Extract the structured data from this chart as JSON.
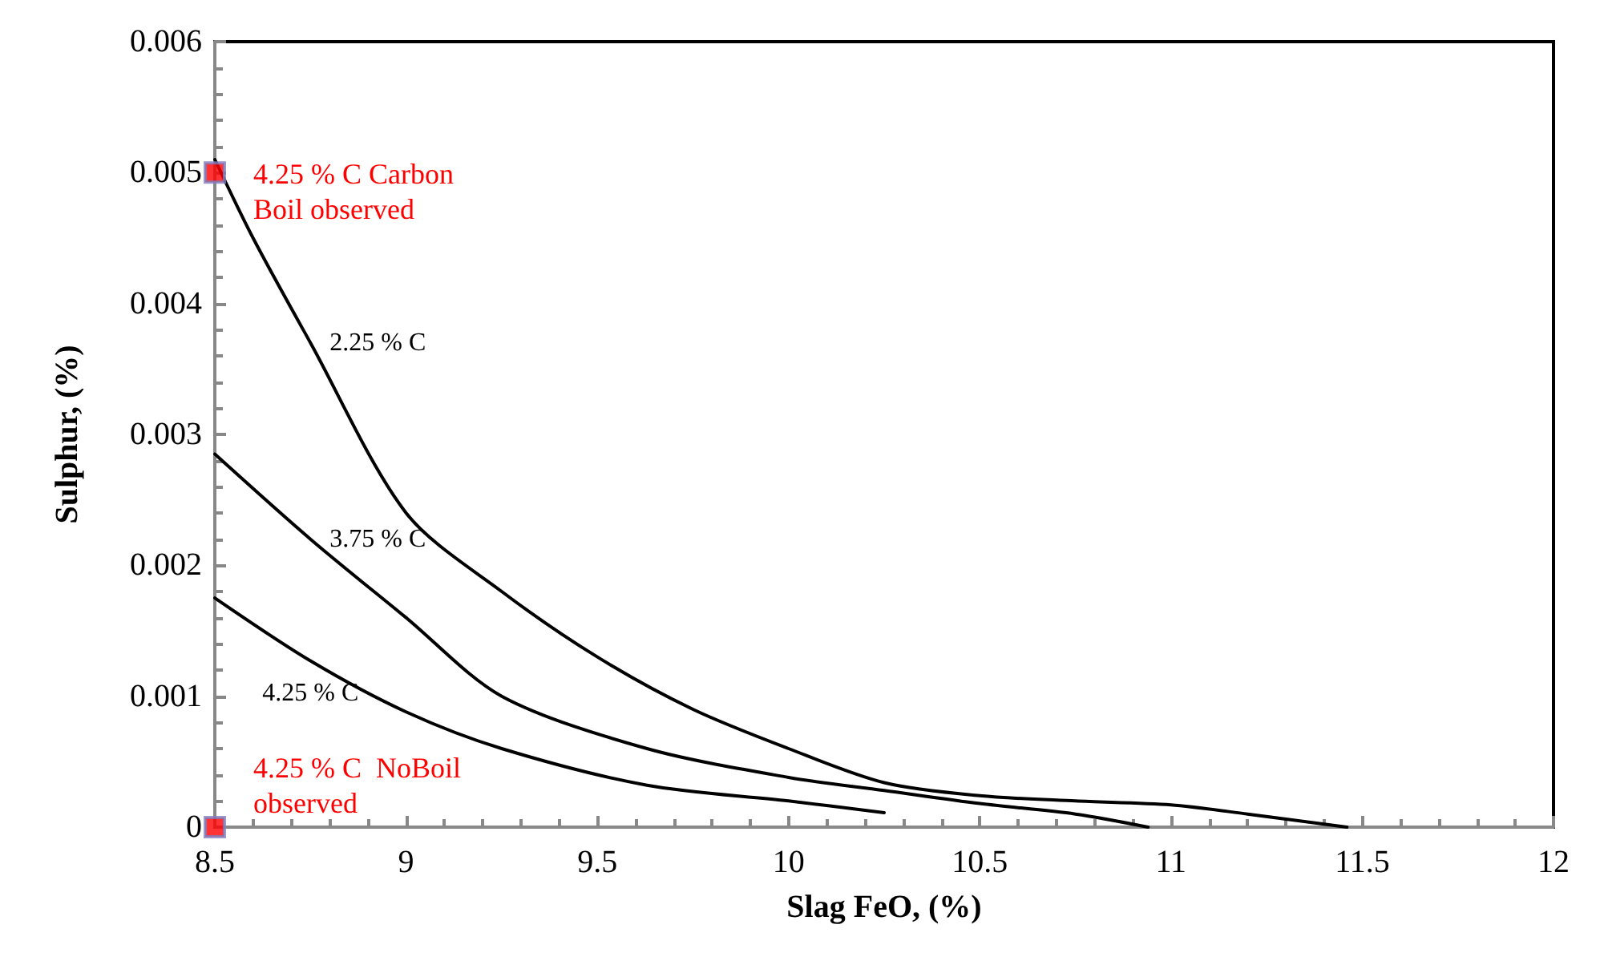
{
  "chart_data": {
    "type": "line",
    "xlabel": "Slag FeO, (%)",
    "ylabel": "Sulphur, (%)",
    "xlim": [
      8.5,
      12
    ],
    "xticks": [
      8.5,
      9,
      9.5,
      10,
      10.5,
      11,
      11.5,
      12
    ],
    "ylim": [
      0,
      0.006
    ],
    "yticks": [
      0,
      0.001,
      0.002,
      0.003,
      0.004,
      0.005,
      0.006
    ],
    "grid": false,
    "line_style": "solid",
    "series": [
      {
        "name": "2.25 % C",
        "color": "#000000",
        "x": [
          8.5,
          8.6,
          8.75,
          9,
          9.25,
          9.5,
          9.75,
          10,
          10.25,
          10.5,
          10.75,
          11,
          11.2,
          11.46
        ],
        "values": [
          0.0051,
          0.0045,
          0.0037,
          0.0024,
          0.0018,
          0.0013,
          0.0009,
          0.0006,
          0.00034,
          0.00024,
          0.0002,
          0.00017,
          0.0001,
          0
        ]
      },
      {
        "name": "3.75 % C",
        "color": "#000000",
        "x": [
          8.5,
          8.75,
          9,
          9.25,
          9.63,
          10,
          10.25,
          10.5,
          10.75,
          10.94
        ],
        "values": [
          0.00285,
          0.0022,
          0.0016,
          0.001,
          0.0006,
          0.00038,
          0.00028,
          0.00018,
          0.0001,
          0
        ]
      },
      {
        "name": "4.25 % C",
        "color": "#000000",
        "x": [
          8.5,
          8.75,
          9,
          9.25,
          9.63,
          10,
          10.25
        ],
        "values": [
          0.00175,
          0.00127,
          0.00088,
          0.0006,
          0.00032,
          0.0002,
          0.00011
        ]
      },
      {
        "type": "scatter",
        "marker": "square",
        "color": "#ff0000",
        "x": [
          8.5,
          8.5
        ],
        "values": [
          0.005,
          0
        ]
      }
    ],
    "annotations": [
      {
        "text": "4.25 % C Carbon\nBoil observed",
        "x": 8.5,
        "y": 0.005
      },
      {
        "text": "4.25 % C  NoBoil\nobserved",
        "x": 8.5,
        "y": 0
      }
    ]
  }
}
